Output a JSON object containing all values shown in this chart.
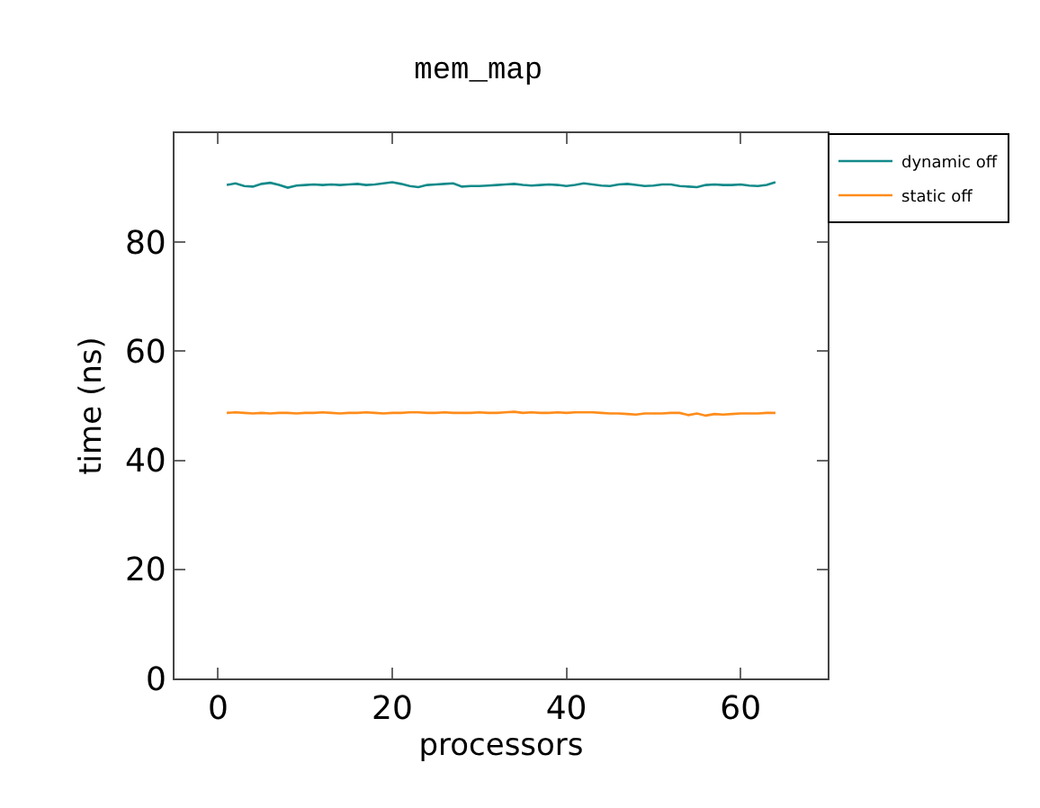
{
  "chart_data": {
    "type": "line",
    "title": "mem_map",
    "xlabel": "processors",
    "ylabel": "time (ns)",
    "x": [
      1,
      2,
      3,
      4,
      5,
      6,
      7,
      8,
      9,
      10,
      11,
      12,
      13,
      14,
      15,
      16,
      17,
      18,
      19,
      20,
      21,
      22,
      23,
      24,
      25,
      26,
      27,
      28,
      29,
      30,
      31,
      32,
      33,
      34,
      35,
      36,
      37,
      38,
      39,
      40,
      41,
      42,
      43,
      44,
      45,
      46,
      47,
      48,
      49,
      50,
      51,
      52,
      53,
      54,
      55,
      56,
      57,
      58,
      59,
      60,
      61,
      62,
      63,
      64
    ],
    "series": [
      {
        "name": "dynamic off",
        "color": "#138a8a",
        "values": [
          90.5,
          90.8,
          90.3,
          90.2,
          90.7,
          90.9,
          90.5,
          90.0,
          90.4,
          90.5,
          90.6,
          90.5,
          90.6,
          90.5,
          90.6,
          90.7,
          90.5,
          90.6,
          90.8,
          91.0,
          90.7,
          90.3,
          90.1,
          90.5,
          90.6,
          90.7,
          90.8,
          90.2,
          90.3,
          90.3,
          90.4,
          90.5,
          90.6,
          90.7,
          90.5,
          90.4,
          90.5,
          90.6,
          90.5,
          90.3,
          90.5,
          90.8,
          90.6,
          90.4,
          90.3,
          90.6,
          90.7,
          90.5,
          90.3,
          90.4,
          90.6,
          90.6,
          90.3,
          90.2,
          90.1,
          90.5,
          90.6,
          90.5,
          90.5,
          90.6,
          90.4,
          90.3,
          90.5,
          91.0
        ]
      },
      {
        "name": "static off",
        "color": "#ff8c1a",
        "values": [
          48.7,
          48.8,
          48.7,
          48.6,
          48.7,
          48.6,
          48.7,
          48.7,
          48.6,
          48.7,
          48.7,
          48.8,
          48.7,
          48.6,
          48.7,
          48.7,
          48.8,
          48.7,
          48.6,
          48.7,
          48.7,
          48.8,
          48.8,
          48.7,
          48.7,
          48.8,
          48.7,
          48.7,
          48.7,
          48.8,
          48.7,
          48.7,
          48.8,
          48.9,
          48.7,
          48.8,
          48.7,
          48.7,
          48.8,
          48.7,
          48.8,
          48.8,
          48.8,
          48.7,
          48.6,
          48.6,
          48.5,
          48.4,
          48.6,
          48.6,
          48.6,
          48.7,
          48.7,
          48.3,
          48.6,
          48.2,
          48.5,
          48.4,
          48.5,
          48.6,
          48.6,
          48.6,
          48.7,
          48.7
        ]
      }
    ],
    "xlim": [
      -5,
      70
    ],
    "xticks": [
      0,
      20,
      40,
      60
    ],
    "ylim": [
      0,
      100
    ],
    "yticks": [
      0,
      20,
      40,
      60,
      80
    ],
    "grid": false,
    "legend": "top right",
    "marker": "none",
    "line_style": "solid"
  }
}
